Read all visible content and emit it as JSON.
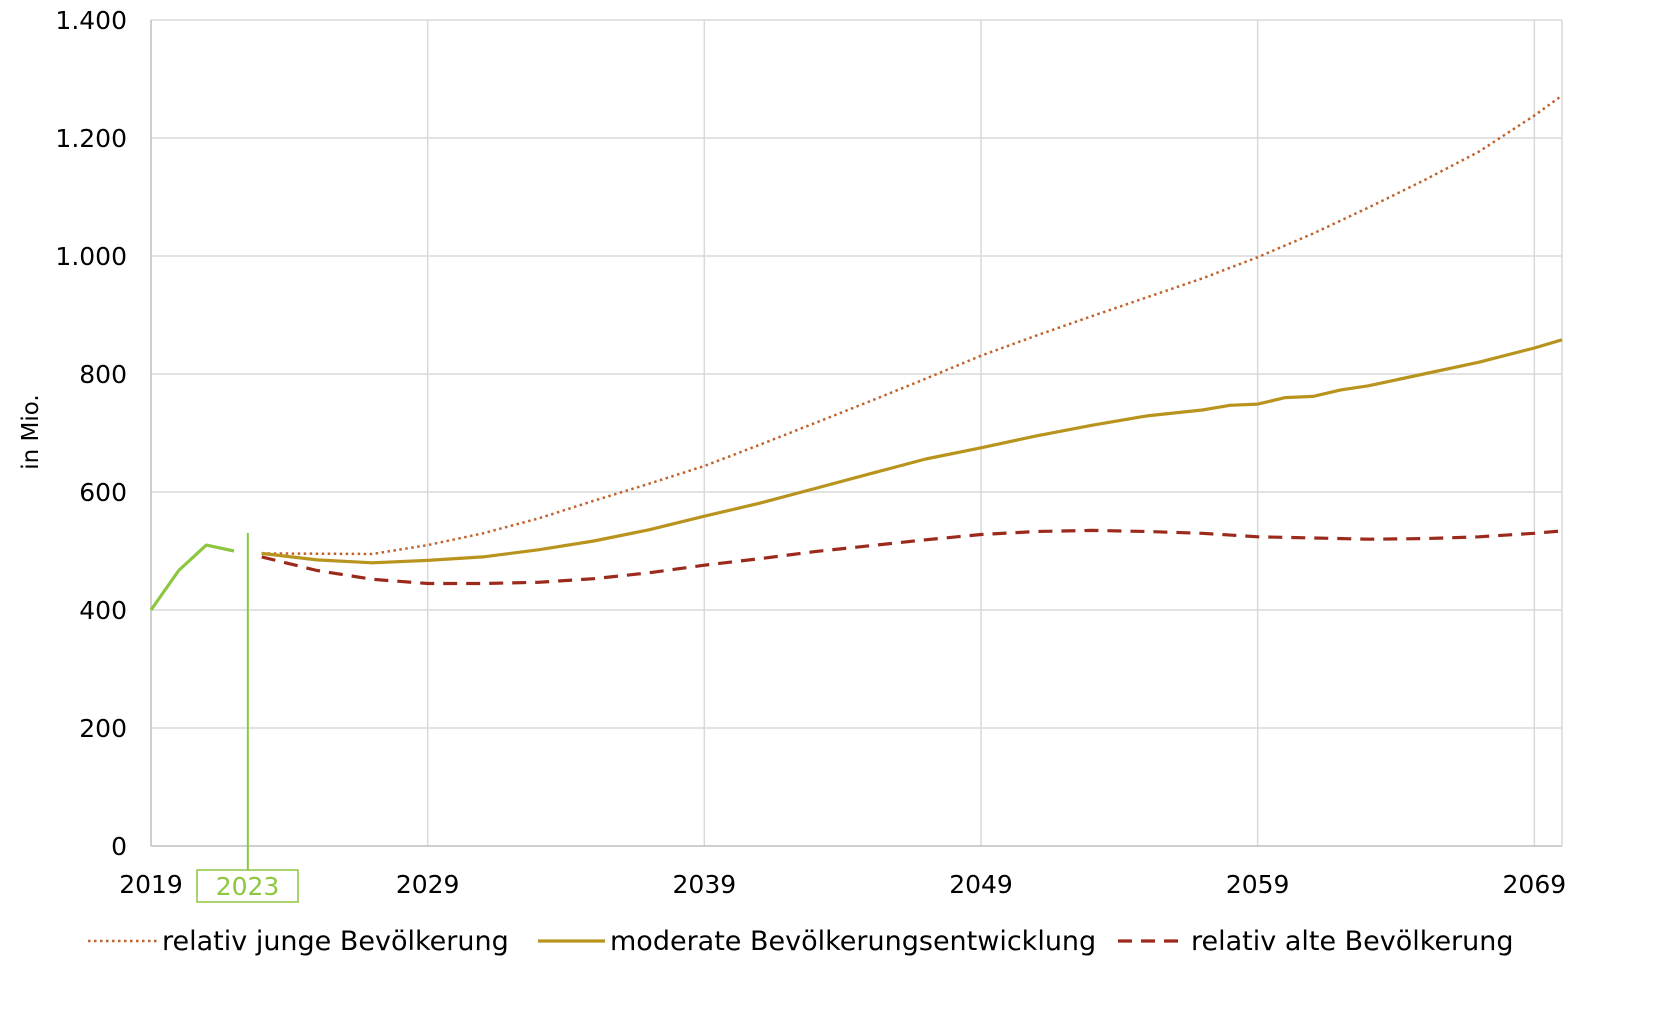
{
  "chart_data": {
    "type": "line",
    "title": "",
    "xlabel": "",
    "ylabel": "in Mio.",
    "xlim": [
      2019,
      2070
    ],
    "ylim": [
      0,
      1400
    ],
    "x_ticks": [
      2019,
      2029,
      2039,
      2049,
      2059,
      2069
    ],
    "x_tick_labels": [
      "2019",
      "2029",
      "2039",
      "2049",
      "2059",
      "2069"
    ],
    "y_ticks": [
      0,
      200,
      400,
      600,
      800,
      1000,
      1200,
      1400
    ],
    "y_tick_labels": [
      "0",
      "200",
      "400",
      "600",
      "800",
      "1.000",
      "1.200",
      "1.400"
    ],
    "grid": "vertical and horizontal",
    "legend_position": "bottom",
    "marker": {
      "year": 2023,
      "label": "2023",
      "color": "#8dc63f"
    },
    "series": [
      {
        "name": "",
        "style": "solid",
        "color": "#8dc63f",
        "x": [
          2019,
          2020,
          2021,
          2022
        ],
        "y": [
          400,
          467,
          510,
          500
        ]
      },
      {
        "name": "relativ junge Bevölkerung",
        "style": "dotted",
        "color": "#c0622a",
        "x": [
          2023,
          2027,
          2029,
          2031,
          2033,
          2035,
          2037,
          2039,
          2041,
          2043,
          2045,
          2047,
          2049,
          2051,
          2053,
          2055,
          2057,
          2059,
          2061,
          2063,
          2065,
          2067,
          2069,
          2070
        ],
        "y": [
          496,
          495,
          510,
          530,
          555,
          585,
          614,
          644,
          680,
          717,
          754,
          792,
          831,
          865,
          898,
          930,
          962,
          998,
          1038,
          1082,
          1128,
          1177,
          1238,
          1272
        ]
      },
      {
        "name": "moderate Bevölkerungsentwicklung",
        "style": "solid",
        "color": "#b8941f",
        "x": [
          2023,
          2025,
          2027,
          2029,
          2031,
          2033,
          2035,
          2037,
          2039,
          2041,
          2043,
          2045,
          2047,
          2049,
          2051,
          2053,
          2055,
          2057,
          2058,
          2059,
          2060,
          2061,
          2062,
          2063,
          2065,
          2067,
          2069,
          2070
        ],
        "y": [
          496,
          485,
          480,
          484,
          490,
          502,
          517,
          536,
          559,
          581,
          606,
          631,
          656,
          675,
          695,
          713,
          729,
          739,
          747,
          749,
          760,
          762,
          773,
          780,
          800,
          820,
          844,
          858
        ]
      },
      {
        "name": "relativ alte Bevölkerung",
        "style": "dashed",
        "color": "#9c2a1c",
        "x": [
          2023,
          2025,
          2027,
          2029,
          2031,
          2033,
          2035,
          2037,
          2039,
          2041,
          2043,
          2045,
          2047,
          2049,
          2051,
          2053,
          2055,
          2057,
          2059,
          2061,
          2063,
          2065,
          2067,
          2069,
          2070
        ],
        "y": [
          490,
          467,
          452,
          445,
          445,
          447,
          453,
          463,
          476,
          487,
          499,
          509,
          519,
          528,
          533,
          535,
          533,
          530,
          524,
          522,
          520,
          521,
          524,
          530,
          534
        ]
      }
    ]
  }
}
